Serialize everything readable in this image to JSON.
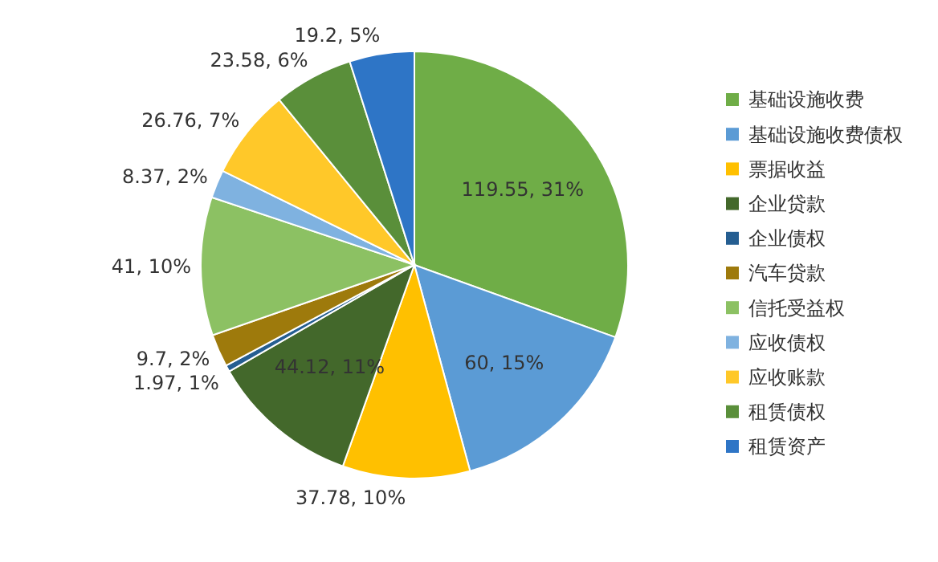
{
  "chart_data": {
    "type": "pie",
    "categories": [
      "基础设施收费",
      "基础设施收费债权",
      "票据收益",
      "企业贷款",
      "企业债权",
      "汽车贷款",
      "信托受益权",
      "应收债权",
      "应收账款",
      "租赁债权",
      "租赁资产"
    ],
    "values": [
      119.55,
      60,
      37.78,
      44.12,
      1.97,
      9.7,
      41,
      8.37,
      26.76,
      23.58,
      19.2
    ],
    "value_labels": [
      "119.55, 31%",
      "60, 15%",
      "37.78, 10%",
      "44.12, 11%",
      "1.97, 1%",
      "9.7, 2%",
      "41, 10%",
      "8.37, 2%",
      "26.76, 7%",
      "23.58, 6%",
      "19.2, 5%"
    ],
    "colors": [
      "#6fad47",
      "#5b9bd5",
      "#ffc000",
      "#43682b",
      "#255e91",
      "#9e7a0c",
      "#8cc163",
      "#7fb2e0",
      "#ffc829",
      "#5a8f3a",
      "#2e75c6"
    ],
    "legend": "right"
  }
}
